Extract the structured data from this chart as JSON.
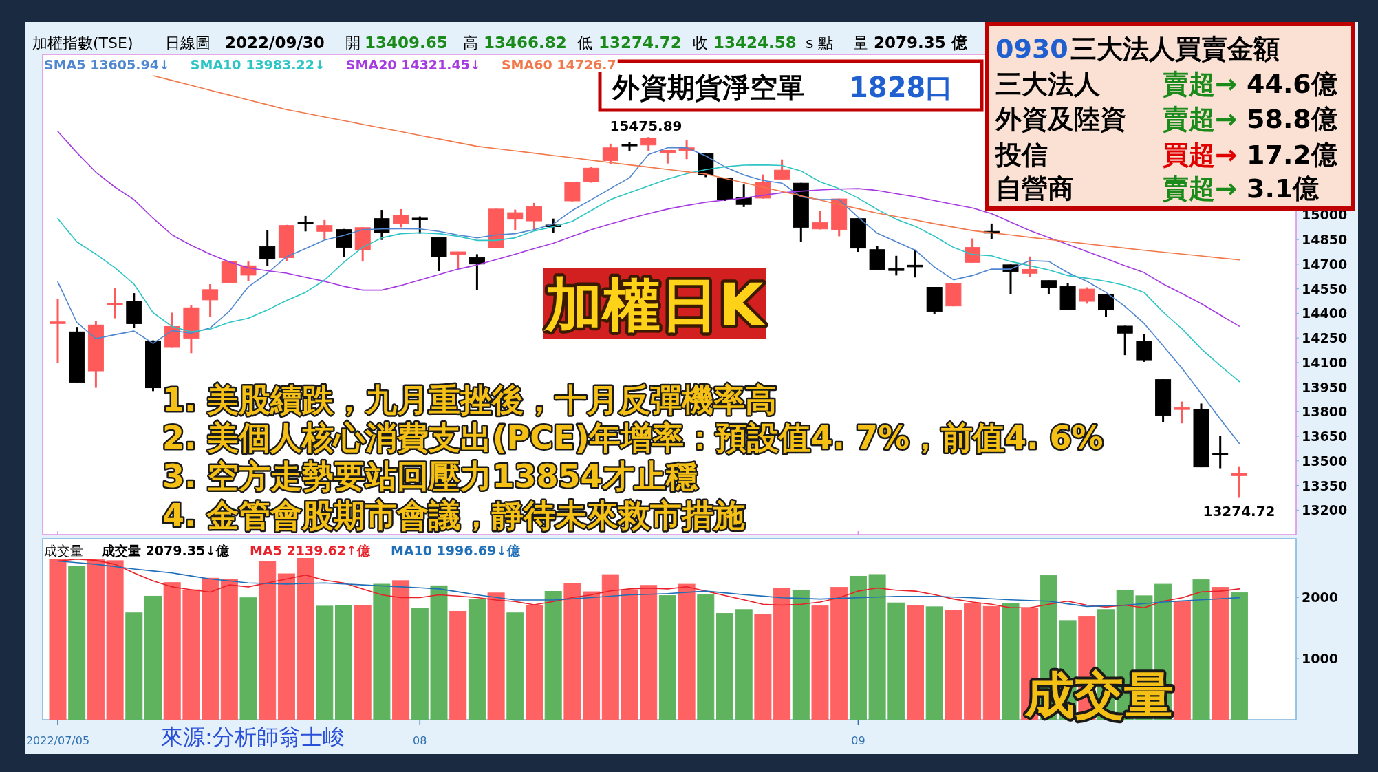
{
  "chart_data": [
    {
      "type": "candlestick",
      "categories": [
        "2022/07/05",
        null,
        null,
        null,
        null,
        null,
        null,
        null,
        null,
        null,
        null,
        null,
        null,
        null,
        null,
        null,
        null,
        null,
        null,
        "08",
        null,
        null,
        null,
        null,
        null,
        null,
        null,
        null,
        null,
        null,
        null,
        null,
        null,
        null,
        null,
        null,
        null,
        null,
        null,
        null,
        null,
        null,
        "09",
        null,
        null,
        null,
        null,
        null,
        null,
        null,
        null,
        null,
        null,
        null,
        null,
        null,
        null,
        null,
        null,
        null,
        null,
        null,
        null
      ],
      "ohlc": [
        [
          14340,
          14487,
          14099,
          14348
        ],
        [
          14287,
          14317,
          13979,
          13979
        ],
        [
          14049,
          14354,
          13946,
          14329
        ],
        [
          14458,
          14553,
          14370,
          14462
        ],
        [
          14475,
          14523,
          14312,
          14337
        ],
        [
          14232,
          14235,
          13926,
          13946
        ],
        [
          14192,
          14404,
          14190,
          14320
        ],
        [
          14249,
          14450,
          14157,
          14434
        ],
        [
          14482,
          14578,
          14379,
          14545
        ],
        [
          14587,
          14720,
          14585,
          14716
        ],
        [
          14633,
          14716,
          14598,
          14690
        ],
        [
          14808,
          14908,
          14690,
          14731
        ],
        [
          14740,
          14940,
          14720,
          14936
        ],
        [
          14956,
          14994,
          14900,
          14950
        ],
        [
          14900,
          14969,
          14851,
          14936
        ],
        [
          14911,
          14915,
          14745,
          14801
        ],
        [
          14786,
          14926,
          14716,
          14923
        ],
        [
          14978,
          15031,
          14848,
          14891
        ],
        [
          14948,
          15036,
          14925,
          14999
        ],
        [
          14981,
          14991,
          14886,
          14976
        ],
        [
          14861,
          14862,
          14658,
          14745
        ],
        [
          14761,
          14776,
          14673,
          14775
        ],
        [
          14741,
          14761,
          14542,
          14701
        ],
        [
          14800,
          15038,
          14797,
          15036
        ],
        [
          14974,
          15033,
          14906,
          15014
        ],
        [
          14964,
          15074,
          14903,
          15051
        ],
        [
          14939,
          14978,
          14891,
          14933
        ],
        [
          15086,
          15200,
          15083,
          15197
        ],
        [
          15202,
          15294,
          15197,
          15286
        ],
        [
          15332,
          15435,
          15311,
          15410
        ],
        [
          15432,
          15447,
          15391,
          15427
        ],
        [
          15427,
          15475.89,
          15389,
          15469
        ],
        [
          15382,
          15396,
          15314,
          15394
        ],
        [
          15394,
          15455,
          15341,
          15410
        ],
        [
          15374,
          15375,
          15231,
          15244
        ],
        [
          15224,
          15226,
          15086,
          15094
        ],
        [
          15108,
          15186,
          15049,
          15064
        ],
        [
          15103,
          15247,
          15100,
          15197
        ],
        [
          15219,
          15339,
          15217,
          15274
        ],
        [
          15194,
          15196,
          14836,
          14925
        ],
        [
          14915,
          15024,
          14912,
          14953
        ],
        [
          14911,
          15100,
          14870,
          15098
        ],
        [
          14978,
          14980,
          14775,
          14798
        ],
        [
          14789,
          14811,
          14666,
          14668
        ],
        [
          14672,
          14751,
          14631,
          14665
        ],
        [
          14694,
          14789,
          14619,
          14687
        ],
        [
          14559,
          14561,
          14394,
          14411
        ],
        [
          14445,
          14585,
          14443,
          14583
        ],
        [
          14711,
          14857,
          14709,
          14802
        ],
        [
          14900,
          14948,
          14854,
          14893
        ],
        [
          14696,
          14698,
          14519,
          14656
        ],
        [
          14644,
          14747,
          14622,
          14668
        ],
        [
          14600,
          14601,
          14519,
          14559
        ],
        [
          14565,
          14583,
          14419,
          14421
        ],
        [
          14473,
          14559,
          14459,
          14548
        ],
        [
          14516,
          14518,
          14378,
          14421
        ],
        [
          14322,
          14324,
          14145,
          14279
        ],
        [
          14231,
          14275,
          14104,
          14116
        ],
        [
          13996,
          13998,
          13738,
          13778
        ],
        [
          13814,
          13862,
          13729,
          13824
        ],
        [
          13815,
          13850,
          13461,
          13463
        ],
        [
          13546,
          13652,
          13455,
          13536
        ],
        [
          13409.65,
          13466.82,
          13274.72,
          13424.58
        ]
      ],
      "colors": [
        "#ff5a5a",
        "#000000",
        "#ff5a5a",
        "#ff5a5a",
        "#000000",
        "#000000",
        "#ff5a5a",
        "#ff5a5a",
        "#ff5a5a",
        "#ff5a5a",
        "#ff5a5a",
        "#000000",
        "#ff5a5a",
        "#000000",
        "#ff5a5a",
        "#000000",
        "#ff5a5a",
        "#000000",
        "#ff5a5a",
        "#000000",
        "#000000",
        "#ff5a5a",
        "#000000",
        "#ff5a5a",
        "#ff5a5a",
        "#ff5a5a",
        "#000000",
        "#ff5a5a",
        "#ff5a5a",
        "#ff5a5a",
        "#000000",
        "#ff5a5a",
        "#ff5a5a",
        "#ff5a5a",
        "#000000",
        "#000000",
        "#000000",
        "#ff5a5a",
        "#ff5a5a",
        "#000000",
        "#ff5a5a",
        "#ff5a5a",
        "#000000",
        "#000000",
        "#000000",
        "#000000",
        "#000000",
        "#ff5a5a",
        "#ff5a5a",
        "#000000",
        "#000000",
        "#ff5a5a",
        "#000000",
        "#000000",
        "#ff5a5a",
        "#000000",
        "#000000",
        "#000000",
        "#000000",
        "#ff5a5a",
        "#000000",
        "#000000",
        "#ff5a5a"
      ],
      "series": [
        {
          "type": "line",
          "name": "SMA5 13605.94↓",
          "color": "#4f86d0",
          "values": [
            14592,
            14345,
            14246,
            14270,
            14292,
            14216,
            14295,
            14279,
            14312,
            14412,
            14562,
            14645,
            14745,
            14795,
            14848,
            14875,
            14911,
            14915,
            14916,
            14915,
            14900,
            14878,
            14861,
            14878,
            14886,
            14911,
            14945,
            15028,
            15094,
            15161,
            15227,
            15369,
            15410,
            15410,
            15361,
            15294,
            15244,
            15211,
            15194,
            15111,
            15094,
            15094,
            14986,
            14888,
            14837,
            14785,
            14682,
            14605,
            14631,
            14670,
            14670,
            14722,
            14717,
            14648,
            14596,
            14528,
            14442,
            14339,
            14202,
            14064,
            13910,
            13755,
            13605.94
          ]
        },
        {
          "type": "line",
          "name": "SMA10 13983.22↓",
          "color": "#2cc4c4",
          "values": [
            14978,
            14836,
            14761,
            14678,
            14578,
            14404,
            14320,
            14287,
            14304,
            14345,
            14370,
            14420,
            14478,
            14528,
            14603,
            14711,
            14803,
            14861,
            14886,
            14891,
            14886,
            14870,
            14845,
            14845,
            14861,
            14903,
            14928,
            14961,
            15028,
            15094,
            15136,
            15177,
            15219,
            15252,
            15277,
            15294,
            15304,
            15306,
            15302,
            15269,
            15202,
            15161,
            15103,
            15034,
            14974,
            14931,
            14871,
            14802,
            14759,
            14751,
            14717,
            14691,
            14665,
            14631,
            14614,
            14596,
            14571,
            14528,
            14408,
            14305,
            14184,
            14081,
            13983.22
          ]
        },
        {
          "type": "line",
          "name": "SMA20 14321.45↓",
          "color": "#a43ae0",
          "values": [
            15510,
            15380,
            15261,
            15170,
            15094,
            14980,
            14878,
            14815,
            14761,
            14715,
            14678,
            14660,
            14645,
            14620,
            14595,
            14565,
            14542,
            14542,
            14570,
            14603,
            14637,
            14670,
            14695,
            14728,
            14761,
            14795,
            14828,
            14870,
            14911,
            14945,
            14978,
            15008,
            15036,
            15058,
            15078,
            15091,
            15103,
            15120,
            15136,
            15145,
            15153,
            15158,
            15161,
            15150,
            15130,
            15111,
            15088,
            15065,
            15043,
            15008,
            14957,
            14905,
            14862,
            14820,
            14777,
            14734,
            14690,
            14649,
            14579,
            14520,
            14459,
            14390,
            14321.45
          ]
        },
        {
          "type": "line",
          "name": "SMA60 14726.7",
          "color": "#f0784a",
          "values": [
            null,
            null,
            null,
            null,
            null,
            15850,
            15821,
            15791,
            15761,
            15732,
            15702,
            15673,
            15643,
            15621,
            15598,
            15576,
            15553,
            15531,
            15509,
            15486,
            15464,
            15441,
            15419,
            15405,
            15391,
            15377,
            15363,
            15349,
            15334,
            15320,
            15306,
            15292,
            15278,
            15264,
            15250,
            15223,
            15197,
            15170,
            15144,
            15117,
            15091,
            15064,
            15038,
            15011,
            14990,
            14969,
            14947,
            14926,
            14905,
            14891,
            14878,
            14864,
            14851,
            14837,
            14824,
            14811,
            14798,
            14785,
            14773,
            14762,
            14750,
            14738,
            14726.7
          ]
        }
      ],
      "ylim": [
        13050,
        15980
      ],
      "yticks": [
        13200,
        13350,
        13500,
        13650,
        13800,
        13950,
        14100,
        14250,
        14400,
        14550,
        14700,
        14850,
        15000
      ],
      "tick_labels": "y",
      "legend": "top left",
      "annotations": [
        "加權指數(TSE)",
        "日線圖",
        "2022/09/30",
        "開",
        "13409.65",
        "高",
        "13466.82",
        "低",
        "13274.72",
        "收",
        "13424.58",
        "s 點",
        "量",
        "2079.35 億",
        "外資期貨淨空單",
        "1828口",
        "0930",
        "三大法人買賣金額",
        "三大法人",
        "賣超→",
        "44.6億",
        "外資及陸資",
        "賣超→",
        "58.8億",
        "投信",
        "買超→",
        "17.2億",
        "自營商",
        "賣超→",
        "3.1億",
        "加權日K",
        "1. 美股續跌，九月重挫後，十月反彈機率高",
        "2. 美個人核心消費支出(PCE)年增率：預設值4. 7%，前值4. 6%",
        "3. 空方走勢要站回壓力13854才止穩",
        "4. 金管會股期市會議，靜待未來救市措施",
        "15475.89",
        "13274.72"
      ]
    },
    {
      "type": "bar",
      "categories": [
        "2022/07/05",
        null,
        null,
        null,
        null,
        null,
        null,
        null,
        null,
        null,
        null,
        null,
        null,
        null,
        null,
        null,
        null,
        null,
        null,
        "08",
        null,
        null,
        null,
        null,
        null,
        null,
        null,
        null,
        null,
        null,
        null,
        null,
        null,
        null,
        null,
        null,
        null,
        null,
        null,
        null,
        null,
        null,
        "09",
        null,
        null,
        null,
        null,
        null,
        null,
        null,
        null,
        null,
        null,
        null,
        null,
        null,
        null,
        null,
        null,
        null,
        null,
        null,
        null
      ],
      "series": [
        {
          "type": "bar",
          "name": "成交量 2079.35↓億",
          "values": [
            2627,
            2510,
            2615,
            2601,
            1747,
            2021,
            2243,
            2125,
            2315,
            2301,
            1995,
            2588,
            2386,
            2647,
            1858,
            1871,
            1871,
            2217,
            2275,
            1818,
            2191,
            1773,
            1968,
            2073,
            1747,
            1871,
            2099,
            2230,
            2093,
            2373,
            2125,
            2197,
            2030,
            2216,
            2042,
            1738,
            1803,
            1716,
            2151,
            2122,
            1861,
            2165,
            2347,
            2375,
            1911,
            1868,
            1847,
            1789,
            1897,
            1853,
            1897,
            1818,
            2361,
            1622,
            1686,
            1803,
            2122,
            2027,
            2216,
            1933,
            2289,
            2165,
            2079.35
          ],
          "colors": [
            "#ff6262",
            "#5fb35f",
            "#ff6262",
            "#ff6262",
            "#5fb35f",
            "#5fb35f",
            "#ff6262",
            "#ff6262",
            "#ff6262",
            "#ff6262",
            "#5fb35f",
            "#ff6262",
            "#ff6262",
            "#ff6262",
            "#5fb35f",
            "#5fb35f",
            "#ff6262",
            "#5fb35f",
            "#ff6262",
            "#5fb35f",
            "#5fb35f",
            "#ff6262",
            "#5fb35f",
            "#ff6262",
            "#5fb35f",
            "#ff6262",
            "#5fb35f",
            "#ff6262",
            "#ff6262",
            "#ff6262",
            "#ff6262",
            "#ff6262",
            "#5fb35f",
            "#ff6262",
            "#5fb35f",
            "#5fb35f",
            "#5fb35f",
            "#ff6262",
            "#ff6262",
            "#5fb35f",
            "#ff6262",
            "#ff6262",
            "#5fb35f",
            "#5fb35f",
            "#5fb35f",
            "#ff6262",
            "#5fb35f",
            "#ff6262",
            "#ff6262",
            "#ff6262",
            "#5fb35f",
            "#ff6262",
            "#5fb35f",
            "#5fb35f",
            "#ff6262",
            "#5fb35f",
            "#5fb35f",
            "#5fb35f",
            "#5fb35f",
            "#ff6262",
            "#5fb35f",
            "#ff6262",
            "#5fb35f"
          ]
        },
        {
          "type": "line",
          "name": "MA5 2139.62↑億",
          "color": "#e8212a",
          "values": [
            2594,
            2626,
            2607,
            2542,
            2400,
            2270,
            2173,
            2127,
            2088,
            2205,
            2173,
            2237,
            2302,
            2367,
            2283,
            2237,
            2140,
            2043,
            1998,
            1998,
            2043,
            2024,
            1998,
            1958,
            1932,
            1880,
            1932,
            1998,
            2043,
            2107,
            2140,
            2153,
            2140,
            2176,
            2104,
            2032,
            1961,
            1888,
            1874,
            1888,
            1924,
            1996,
            2104,
            2155,
            2119,
            2104,
            2046,
            1974,
            1924,
            1888,
            1831,
            1831,
            1888,
            1938,
            1874,
            1845,
            1874,
            1831,
            1938,
            1996,
            2090,
            2104,
            2139.62
          ]
        },
        {
          "type": "line",
          "name": "MA10 1996.69↓億",
          "color": "#1f6fb8",
          "values": [
            2594,
            2568,
            2542,
            2504,
            2465,
            2432,
            2400,
            2351,
            2302,
            2270,
            2237,
            2228,
            2218,
            2228,
            2237,
            2221,
            2205,
            2189,
            2173,
            2157,
            2140,
            2092,
            2043,
            2000,
            1958,
            1958,
            1958,
            1978,
            1998,
            2020,
            2043,
            2052,
            2062,
            2083,
            2104,
            2075,
            2046,
            2021,
            1996,
            1985,
            1974,
            1985,
            1996,
            2007,
            2018,
            2018,
            2018,
            2007,
            1996,
            1978,
            1961,
            1950,
            1938,
            1895,
            1852,
            1863,
            1874,
            1899,
            1924,
            1943,
            1961,
            1979,
            1996.69
          ]
        }
      ],
      "ylim": [
        0,
        2960
      ],
      "yticks": [
        1000,
        2000
      ],
      "legend": "top left",
      "annotations": [
        "成交量",
        "成交量",
        "來源:分析師翁士峻"
      ]
    }
  ]
}
